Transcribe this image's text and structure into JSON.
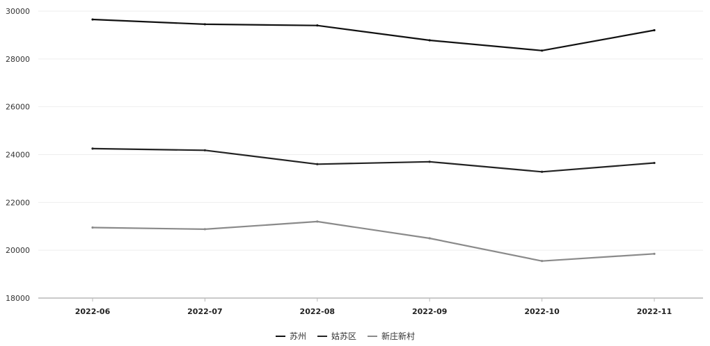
{
  "chart_data": {
    "type": "line",
    "categories": [
      "2022-06",
      "2022-07",
      "2022-08",
      "2022-09",
      "2022-10",
      "2022-11"
    ],
    "series": [
      {
        "name": "苏州",
        "values": [
          29650,
          29450,
          29400,
          28780,
          28350,
          29200
        ],
        "color": "#111111"
      },
      {
        "name": "姑苏区",
        "values": [
          24250,
          24180,
          23600,
          23700,
          23280,
          23650
        ],
        "color": "#222222"
      },
      {
        "name": "新庄新村",
        "values": [
          20950,
          20880,
          21200,
          20500,
          19550,
          19850
        ],
        "color": "#8a8a8a"
      }
    ],
    "ylim": [
      18000,
      30000
    ],
    "yticks": [
      "30000",
      "28000",
      "26000",
      "24000",
      "22000",
      "20000",
      "18000"
    ],
    "grid": true,
    "legend_position": "bottom-center"
  }
}
